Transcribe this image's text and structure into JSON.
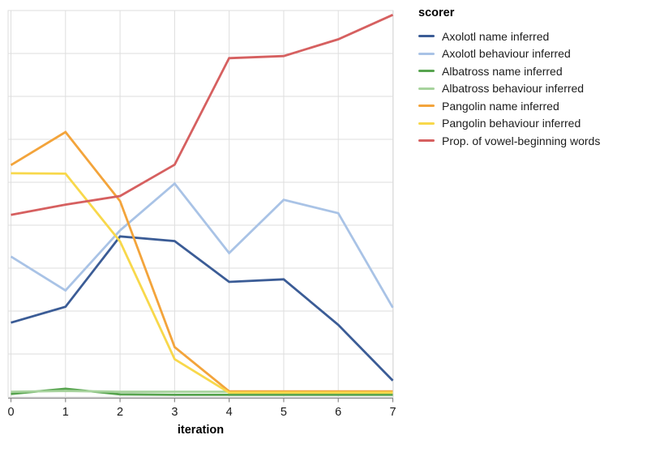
{
  "chart_data": {
    "type": "line",
    "x": [
      0,
      1,
      2,
      3,
      4,
      5,
      6,
      7
    ],
    "xlabel": "iteration",
    "ylabel": "",
    "ylim": [
      0,
      0.9
    ],
    "y_tick_step": 0.1,
    "y_axis_labels_shown": false,
    "grid": true,
    "legend_position": "right",
    "legend_title": "scorer",
    "series": [
      {
        "name": "Axolotl name inferred",
        "color": "#3b5c96",
        "values": [
          0.173,
          0.21,
          0.374,
          0.363,
          0.268,
          0.274,
          0.168,
          0.038
        ]
      },
      {
        "name": "Axolotl behaviour inferred",
        "color": "#a9c3e6",
        "values": [
          0.327,
          0.248,
          0.388,
          0.497,
          0.335,
          0.459,
          0.428,
          0.208
        ]
      },
      {
        "name": "Albatross name inferred",
        "color": "#57a44f",
        "values": [
          0.007,
          0.019,
          0.006,
          0.005,
          0.005,
          0.005,
          0.005,
          0.005
        ]
      },
      {
        "name": "Albatross behaviour inferred",
        "color": "#a7d39d",
        "values": [
          0.012,
          0.014,
          0.012,
          0.012,
          0.012,
          0.012,
          0.012,
          0.012
        ]
      },
      {
        "name": "Pangolin name inferred",
        "color": "#f3a43b",
        "values": [
          0.54,
          0.617,
          0.456,
          0.116,
          0.013,
          0.013,
          0.013,
          0.013
        ]
      },
      {
        "name": "Pangolin behaviour inferred",
        "color": "#f8d84b",
        "values": [
          0.521,
          0.52,
          0.362,
          0.088,
          0.01,
          0.01,
          0.01,
          0.01
        ]
      },
      {
        "name": "Prop. of vowel-beginning words",
        "color": "#d66060",
        "values": [
          0.424,
          0.448,
          0.468,
          0.541,
          0.789,
          0.794,
          0.833,
          0.89
        ]
      }
    ],
    "style": {
      "grid_color": "#dedede",
      "axis_color": "#8a8a8a",
      "tick_label_color": "#1a1a1a",
      "line_width": 2.8
    }
  }
}
